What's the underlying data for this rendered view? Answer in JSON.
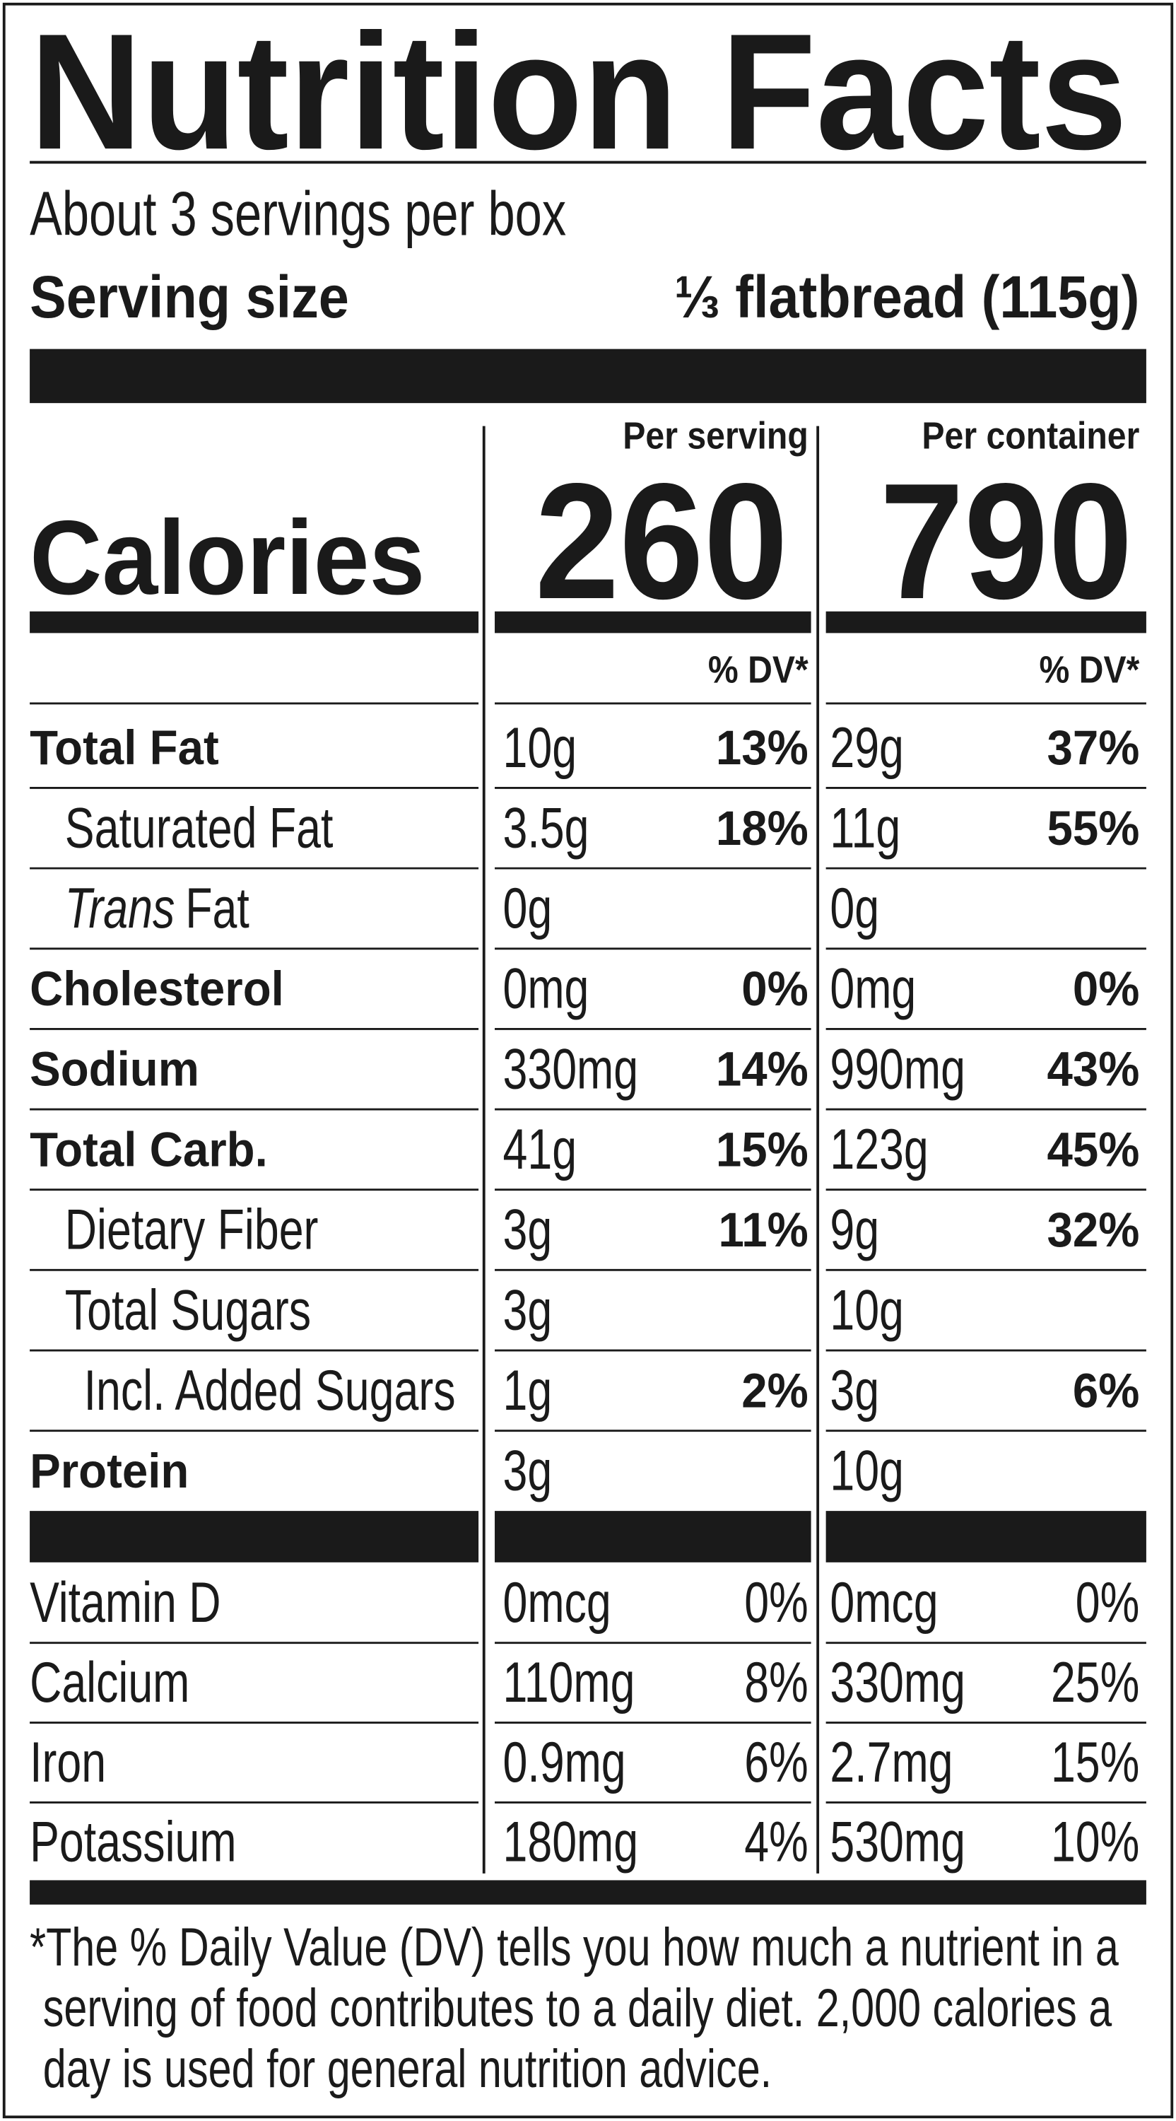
{
  "title": "Nutrition Facts",
  "servings": "About 3 servings per box",
  "serving_size": {
    "label": "Serving size",
    "value": "⅓ flatbread (115g)"
  },
  "columns": [
    "Per serving",
    "Per container"
  ],
  "calories": {
    "label": "Calories",
    "values": [
      "260",
      "790"
    ]
  },
  "dv_header": [
    "% DV*",
    "% DV*"
  ],
  "nutrients": [
    {
      "name": "Total Fat",
      "level": 0,
      "amounts": [
        "10g",
        "29g"
      ],
      "dv": [
        "13%",
        "37%"
      ]
    },
    {
      "name": "Saturated Fat",
      "level": 1,
      "amounts": [
        "3.5g",
        "11g"
      ],
      "dv": [
        "18%",
        "55%"
      ]
    },
    {
      "name_italic": "Trans",
      "name": "Fat",
      "level": 1,
      "amounts": [
        "0g",
        "0g"
      ]
    },
    {
      "name": "Cholesterol",
      "level": 0,
      "amounts": [
        "0mg",
        "0mg"
      ],
      "dv": [
        "0%",
        "0%"
      ]
    },
    {
      "name": "Sodium",
      "level": 0,
      "amounts": [
        "330mg",
        "990mg"
      ],
      "dv": [
        "14%",
        "43%"
      ]
    },
    {
      "name": "Total Carb.",
      "level": 0,
      "amounts": [
        "41g",
        "123g"
      ],
      "dv": [
        "15%",
        "45%"
      ]
    },
    {
      "name": "Dietary Fiber",
      "level": 1,
      "amounts": [
        "3g",
        "9g"
      ],
      "dv": [
        "11%",
        "32%"
      ]
    },
    {
      "name": "Total Sugars",
      "level": 1,
      "amounts": [
        "3g",
        "10g"
      ]
    },
    {
      "name": "Incl. Added Sugars",
      "level": 2,
      "amounts": [
        "1g",
        "3g"
      ],
      "dv": [
        "2%",
        "6%"
      ]
    },
    {
      "name": "Protein",
      "level": 0,
      "amounts": [
        "3g",
        "10g"
      ]
    }
  ],
  "vitamins": [
    {
      "name": "Vitamin D",
      "amounts": [
        "0mcg",
        "0mcg"
      ],
      "dv": [
        "0%",
        "0%"
      ]
    },
    {
      "name": "Calcium",
      "amounts": [
        "110mg",
        "330mg"
      ],
      "dv": [
        "8%",
        "25%"
      ]
    },
    {
      "name": "Iron",
      "amounts": [
        "0.9mg",
        "2.7mg"
      ],
      "dv": [
        "6%",
        "15%"
      ]
    },
    {
      "name": "Potassium",
      "amounts": [
        "180mg",
        "530mg"
      ],
      "dv": [
        "4%",
        "10%"
      ]
    }
  ],
  "footnote": "*The % Daily Value (DV) tells you how much a nutrient in a serving of food contributes to a daily diet. 2,000 calories a day is used for general nutrition advice."
}
